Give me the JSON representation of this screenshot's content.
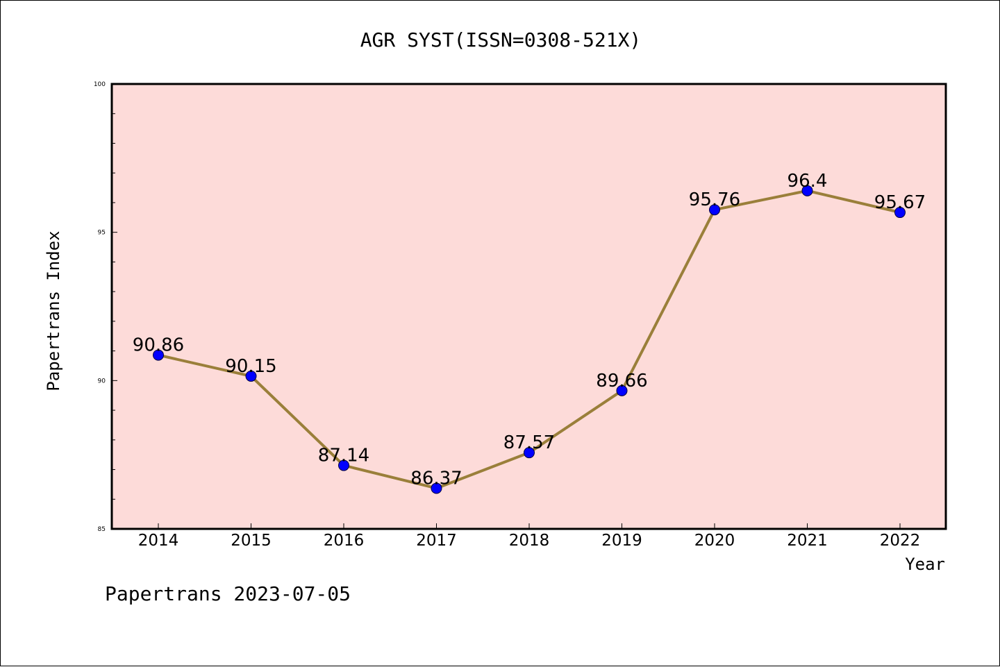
{
  "chart_data": {
    "type": "line",
    "title": "AGR SYST(ISSN=0308-521X)",
    "xlabel": "Year",
    "ylabel": "Papertrans Index",
    "categories": [
      "2014",
      "2015",
      "2016",
      "2017",
      "2018",
      "2019",
      "2020",
      "2021",
      "2022"
    ],
    "series": [
      {
        "values": [
          90.86,
          90.15,
          87.14,
          86.37,
          87.57,
          89.66,
          95.76,
          96.4,
          95.67
        ],
        "labels": [
          "90.86",
          "90.15",
          "87.14",
          "86.37",
          "87.57",
          "89.66",
          "95.76",
          "96.4",
          "95.67"
        ]
      }
    ],
    "ylim": [
      85,
      100
    ],
    "y_ticks": [
      "85",
      "90",
      "95",
      "100"
    ],
    "y_tick_values": [
      85,
      90,
      95,
      100
    ],
    "y_minor_step": 1,
    "grid": false,
    "line_color": "#9a7f3a",
    "marker_color": "#0000ff",
    "plot_background": "#fddbd9"
  },
  "footer": {
    "text": "Papertrans 2023-07-05"
  }
}
